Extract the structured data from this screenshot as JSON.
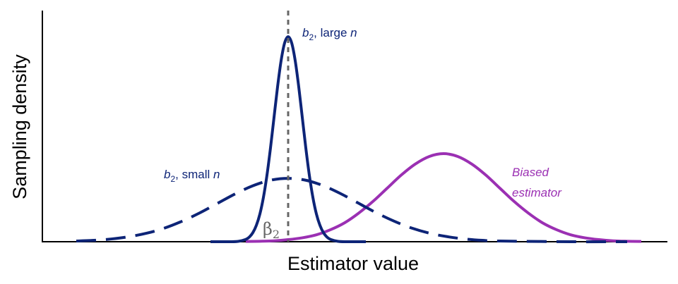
{
  "chart_data": {
    "type": "line",
    "xlabel": "Estimator value",
    "ylabel": "Sampling density",
    "xlim": [
      -3.48,
      5.37
    ],
    "ylim": [
      0,
      1
    ],
    "reference_line": {
      "x": 0,
      "color": "#666666",
      "label": [
        "β",
        "2"
      ]
    },
    "annotations": [
      {
        "parts": [
          "b",
          "2",
          ", large ",
          "n"
        ],
        "color": "#0d2477"
      },
      {
        "parts": [
          "b",
          "2",
          ", small ",
          "n"
        ],
        "color": "#0d2477"
      },
      {
        "parts": [
          "Biased",
          "estimator"
        ],
        "color": "#9b30b3"
      }
    ],
    "series": [
      {
        "color": "#9b30b3",
        "dashed": false,
        "x": [
          -0.6,
          -0.4,
          -0.2,
          0,
          0.2,
          0.4,
          0.6,
          0.8,
          1.0,
          1.2,
          1.4,
          1.6,
          1.8,
          2.0,
          2.2,
          2.4,
          2.6,
          2.8,
          3.0,
          3.2,
          3.4,
          3.6,
          3.8,
          4.0,
          4.2,
          4.4,
          4.6,
          4.8,
          5.0
        ],
        "values": [
          0.001,
          0.002,
          0.004,
          0.009,
          0.017,
          0.03,
          0.052,
          0.082,
          0.124,
          0.174,
          0.231,
          0.288,
          0.336,
          0.369,
          0.381,
          0.369,
          0.336,
          0.288,
          0.231,
          0.174,
          0.124,
          0.082,
          0.052,
          0.03,
          0.017,
          0.009,
          0.004,
          0.002,
          0.001
        ]
      },
      {
        "color": "#0d2477",
        "dashed": true,
        "x": [
          -3,
          -2.75,
          -2.5,
          -2.25,
          -2,
          -1.75,
          -1.5,
          -1.25,
          -1,
          -0.75,
          -0.5,
          -0.25,
          0,
          0.25,
          0.5,
          0.75,
          1,
          1.25,
          1.5,
          1.75,
          2,
          2.25,
          2.5,
          2.75,
          3,
          4,
          4.8
        ],
        "values": [
          0.003,
          0.006,
          0.012,
          0.022,
          0.037,
          0.059,
          0.089,
          0.125,
          0.166,
          0.207,
          0.242,
          0.266,
          0.274,
          0.266,
          0.242,
          0.207,
          0.166,
          0.125,
          0.089,
          0.059,
          0.037,
          0.022,
          0.012,
          0.006,
          0.003,
          0,
          0
        ]
      },
      {
        "color": "#0d2477",
        "dashed": false,
        "x": [
          -1.1,
          -0.8,
          -0.7,
          -0.6,
          -0.55,
          -0.5,
          -0.45,
          -0.4,
          -0.35,
          -0.3,
          -0.25,
          -0.2,
          -0.15,
          -0.1,
          -0.05,
          0,
          0.05,
          0.1,
          0.15,
          0.2,
          0.25,
          0.3,
          0.35,
          0.4,
          0.45,
          0.5,
          0.55,
          0.6,
          0.7,
          0.8,
          1.1
        ],
        "values": [
          0,
          0,
          0.002,
          0.01,
          0.02,
          0.039,
          0.071,
          0.12,
          0.192,
          0.288,
          0.406,
          0.538,
          0.67,
          0.783,
          0.86,
          0.887,
          0.86,
          0.783,
          0.67,
          0.538,
          0.406,
          0.288,
          0.192,
          0.12,
          0.071,
          0.039,
          0.02,
          0.01,
          0.002,
          0,
          0
        ]
      }
    ]
  }
}
